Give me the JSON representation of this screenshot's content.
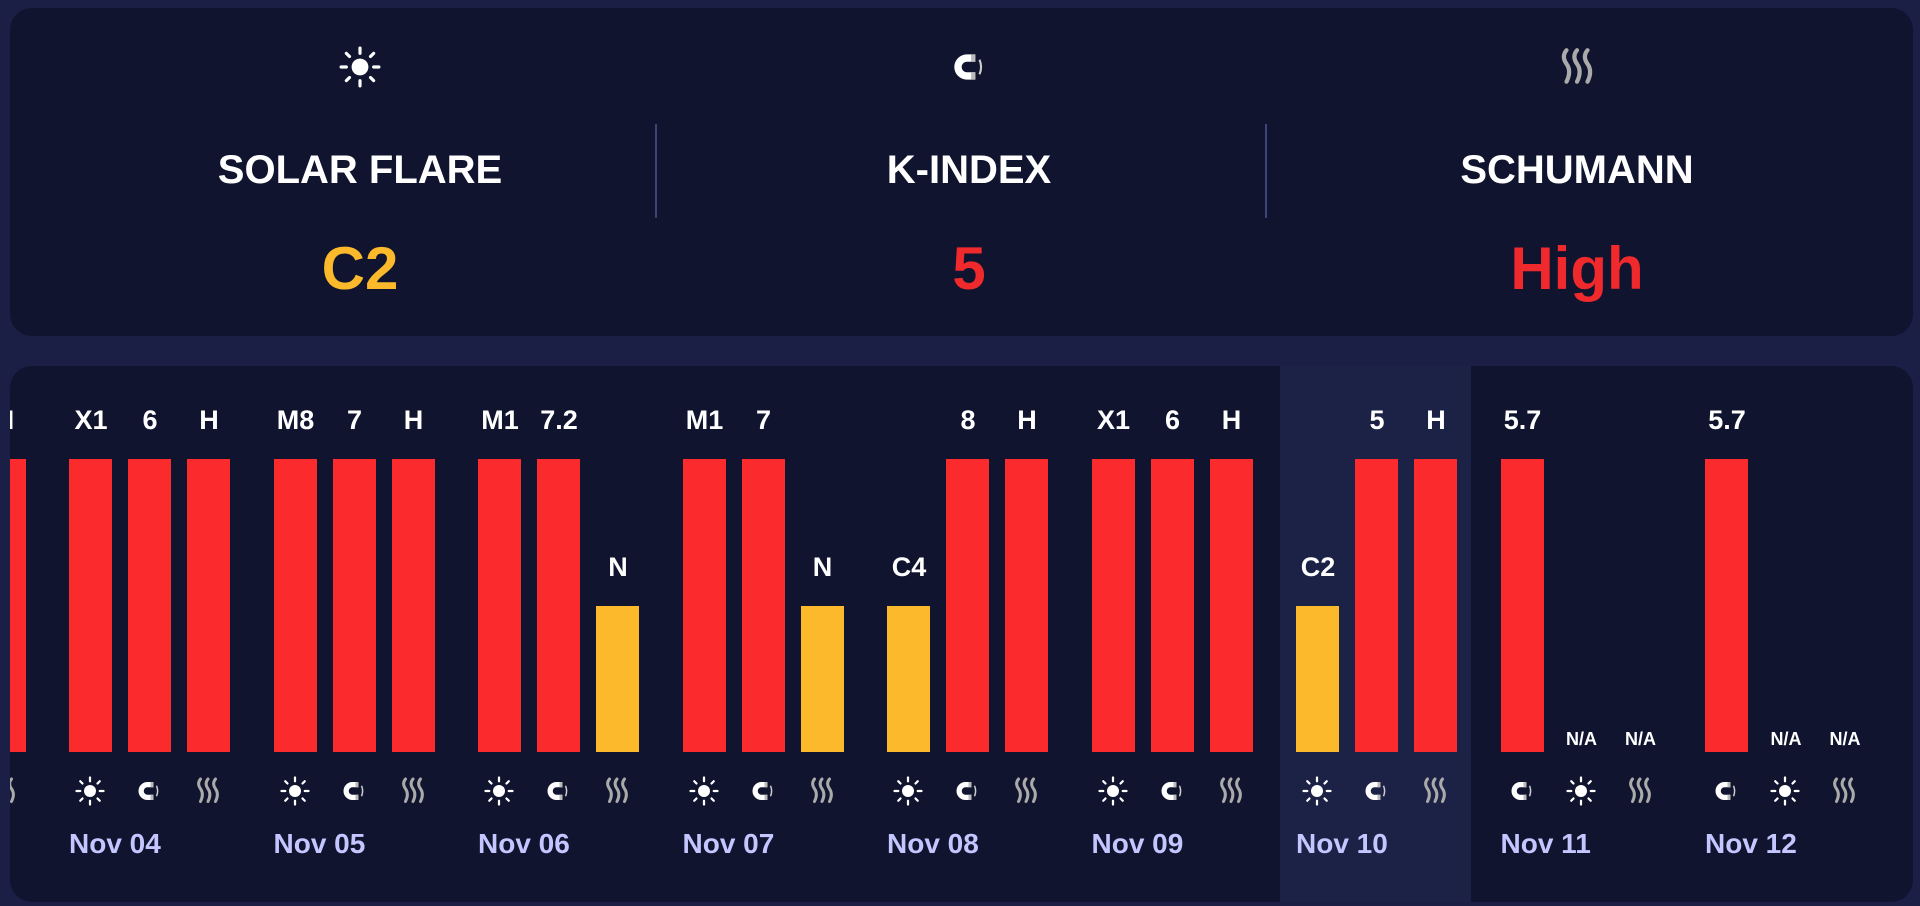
{
  "colors": {
    "red": "#fb2a2c",
    "yellow": "#fbb92b",
    "white": "#ffffff"
  },
  "summary": [
    {
      "icon": "sun",
      "label": "SOLAR FLARE",
      "value": "C2",
      "color": "#fbb92b"
    },
    {
      "icon": "magnet",
      "label": "K-INDEX",
      "value": "5",
      "color": "#f0292d"
    },
    {
      "icon": "wave",
      "label": "SCHUMANN",
      "value": "High",
      "color": "#f0292d"
    }
  ],
  "days": [
    {
      "date": "",
      "highlight": false,
      "bars": [
        {
          "icon": "",
          "label": "",
          "level": 0,
          "color": "red"
        },
        {
          "icon": "",
          "label": "",
          "level": 0,
          "color": "red"
        },
        {
          "icon": "wave",
          "label": "H",
          "level": 1,
          "color": "red"
        }
      ]
    },
    {
      "date": "Nov 04",
      "highlight": false,
      "bars": [
        {
          "icon": "sun",
          "label": "X1",
          "level": 1,
          "color": "red"
        },
        {
          "icon": "magnet",
          "label": "6",
          "level": 1,
          "color": "red"
        },
        {
          "icon": "wave",
          "label": "H",
          "level": 1,
          "color": "red"
        }
      ]
    },
    {
      "date": "Nov 05",
      "highlight": false,
      "bars": [
        {
          "icon": "sun",
          "label": "M8",
          "level": 1,
          "color": "red"
        },
        {
          "icon": "magnet",
          "label": "7",
          "level": 1,
          "color": "red"
        },
        {
          "icon": "wave",
          "label": "H",
          "level": 1,
          "color": "red"
        }
      ]
    },
    {
      "date": "Nov 06",
      "highlight": false,
      "bars": [
        {
          "icon": "sun",
          "label": "M1",
          "level": 1,
          "color": "red"
        },
        {
          "icon": "magnet",
          "label": "7.2",
          "level": 1,
          "color": "red"
        },
        {
          "icon": "wave",
          "label": "N",
          "level": 0.5,
          "color": "yellow"
        }
      ]
    },
    {
      "date": "Nov 07",
      "highlight": false,
      "bars": [
        {
          "icon": "sun",
          "label": "M1",
          "level": 1,
          "color": "red"
        },
        {
          "icon": "magnet",
          "label": "7",
          "level": 1,
          "color": "red"
        },
        {
          "icon": "wave",
          "label": "N",
          "level": 0.5,
          "color": "yellow"
        }
      ]
    },
    {
      "date": "Nov 08",
      "highlight": false,
      "bars": [
        {
          "icon": "sun",
          "label": "C4",
          "level": 0.5,
          "color": "yellow"
        },
        {
          "icon": "magnet",
          "label": "8",
          "level": 1,
          "color": "red"
        },
        {
          "icon": "wave",
          "label": "H",
          "level": 1,
          "color": "red"
        }
      ]
    },
    {
      "date": "Nov 09",
      "highlight": false,
      "bars": [
        {
          "icon": "sun",
          "label": "X1",
          "level": 1,
          "color": "red"
        },
        {
          "icon": "magnet",
          "label": "6",
          "level": 1,
          "color": "red"
        },
        {
          "icon": "wave",
          "label": "H",
          "level": 1,
          "color": "red"
        }
      ]
    },
    {
      "date": "Nov 10",
      "highlight": true,
      "bars": [
        {
          "icon": "sun",
          "label": "C2",
          "level": 0.5,
          "color": "yellow"
        },
        {
          "icon": "magnet",
          "label": "5",
          "level": 1,
          "color": "red"
        },
        {
          "icon": "wave",
          "label": "H",
          "level": 1,
          "color": "red"
        }
      ]
    },
    {
      "date": "Nov 11",
      "highlight": false,
      "bars": [
        {
          "icon": "magnet",
          "label": "5.7",
          "level": 1,
          "color": "red"
        },
        {
          "icon": "sun",
          "label": "N/A",
          "level": 0,
          "color": "red"
        },
        {
          "icon": "wave",
          "label": "N/A",
          "level": 0,
          "color": "red"
        }
      ]
    },
    {
      "date": "Nov 12",
      "highlight": false,
      "bars": [
        {
          "icon": "magnet",
          "label": "5.7",
          "level": 1,
          "color": "red"
        },
        {
          "icon": "sun",
          "label": "N/A",
          "level": 0,
          "color": "red"
        },
        {
          "icon": "wave",
          "label": "N/A",
          "level": 0,
          "color": "red"
        }
      ]
    }
  ]
}
